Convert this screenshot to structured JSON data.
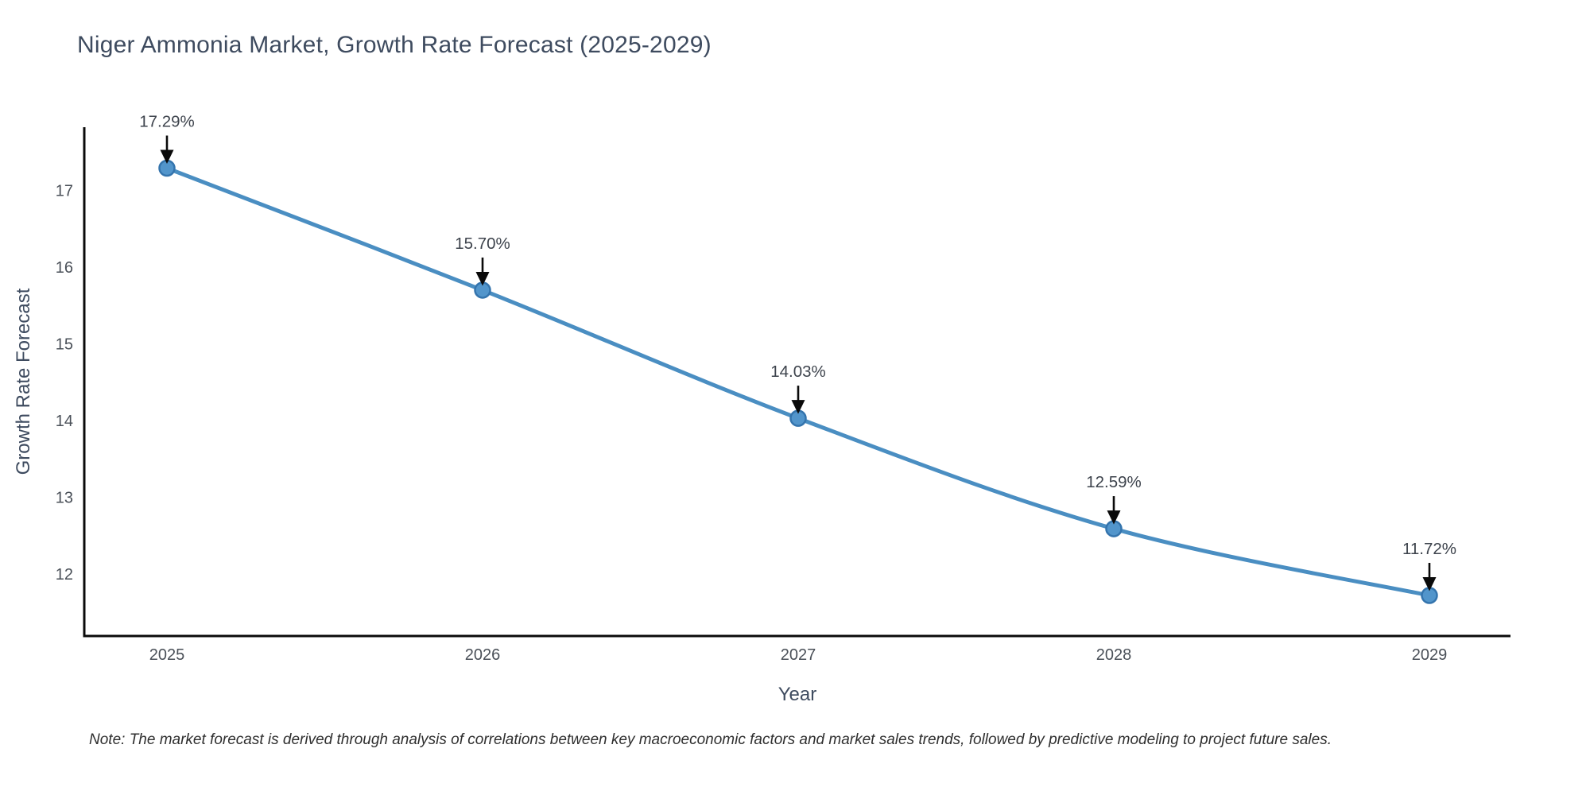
{
  "chart_data": {
    "type": "line",
    "title": "Niger Ammonia Market, Growth Rate Forecast (2025-2029)",
    "xlabel": "Year",
    "ylabel": "Growth Rate Forecast",
    "x": [
      2025,
      2026,
      2027,
      2028,
      2029
    ],
    "y": [
      17.29,
      15.7,
      14.03,
      12.59,
      11.72
    ],
    "point_labels": [
      "17.29%",
      "15.70%",
      "14.03%",
      "12.59%",
      "11.72%"
    ],
    "xtick_labels": [
      "2025",
      "2026",
      "2027",
      "2028",
      "2029"
    ],
    "yticks": [
      12,
      13,
      14,
      15,
      16,
      17
    ],
    "ylim": [
      11.19,
      17.85
    ],
    "xlim": [
      2024.74,
      2029.26
    ],
    "grid": false,
    "legend": "none",
    "marker": "circle",
    "annotation_arrows": true
  },
  "note": {
    "text": "Note: The market forecast is derived through analysis of correlations between key macroeconomic factors and market sales trends, followed by predictive modeling to project future sales."
  },
  "colors": {
    "line": "#4a8ec2",
    "marker_fill": "#5295cb",
    "marker_edge": "#3474ad",
    "axis": "#0a0a0a",
    "arrow": "#0a0a0a",
    "title_text": "#3e4b5f",
    "tick_text": "#4a5058",
    "annotation_text": "#3d434c",
    "note_text": "#2f2f2f",
    "background": "#ffffff"
  }
}
